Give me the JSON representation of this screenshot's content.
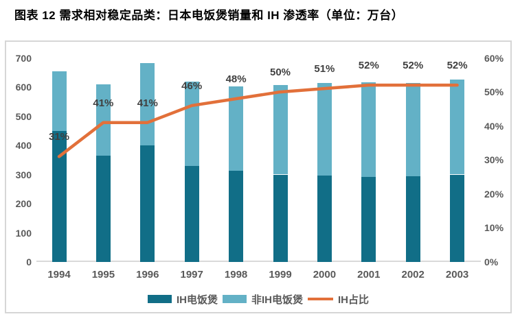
{
  "title": "图表 12 需求相对稳定品类：日本电饭煲销量和 IH 渗透率（单位：万台）",
  "colors": {
    "ih_bar": "#116e87",
    "non_ih_bar": "#63b1c6",
    "line": "#e2703a",
    "axis_text": "#595959",
    "point_label_text": "#404040",
    "frame_border": "#d6d6d6",
    "axis_line": "#d9d9d9",
    "title_text": "#000000"
  },
  "chart_data": {
    "type": "bar",
    "subtype": "stacked-bars-with-line-combo",
    "categories": [
      "1994",
      "1995",
      "1996",
      "1997",
      "1998",
      "1999",
      "2000",
      "2001",
      "2002",
      "2003"
    ],
    "series": [
      {
        "name": "IH电饭煲",
        "type": "bar",
        "stack_position": "bottom",
        "color": "#116e87",
        "values": [
          450,
          365,
          400,
          330,
          312,
          300,
          296,
          292,
          295,
          300
        ]
      },
      {
        "name": "非IH电饭煲",
        "type": "bar",
        "stack_position": "top",
        "color": "#63b1c6",
        "values": [
          205,
          245,
          282,
          290,
          290,
          307,
          317,
          325,
          318,
          327
        ]
      },
      {
        "name": "IH占比",
        "type": "line",
        "axis": "right",
        "color": "#e2703a",
        "values": [
          31,
          41,
          41,
          46,
          48,
          50,
          51,
          52,
          52,
          52
        ]
      }
    ],
    "point_labels": [
      "31%",
      "41%",
      "41%",
      "46%",
      "48%",
      "50%",
      "51%",
      "52%",
      "52%",
      "52%"
    ],
    "left_axis": {
      "min": 0,
      "max": 700,
      "step": 100,
      "tick_labels": [
        "700",
        "600",
        "500",
        "400",
        "300",
        "200",
        "100",
        "0"
      ]
    },
    "right_axis": {
      "min": 0,
      "max": 60,
      "step": 10,
      "tick_labels": [
        "60%",
        "50%",
        "40%",
        "30%",
        "20%",
        "10%",
        "0%"
      ]
    },
    "grid": false,
    "legend_position": "bottom",
    "legend": [
      {
        "label": "IH电饭煲",
        "marker": "box",
        "color": "#116e87"
      },
      {
        "label": "非IH电饭煲",
        "marker": "box",
        "color": "#63b1c6"
      },
      {
        "label": "IH占比",
        "marker": "line",
        "color": "#e2703a"
      }
    ]
  }
}
